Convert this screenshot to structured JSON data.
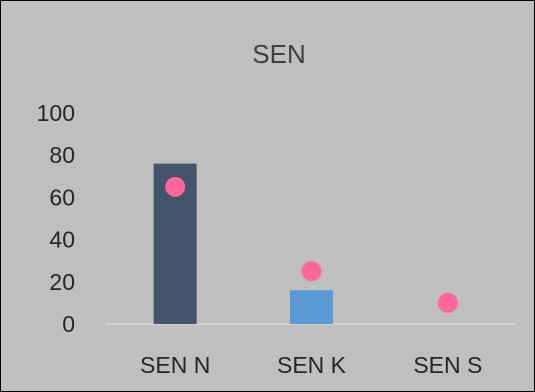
{
  "chart_data": {
    "type": "bar",
    "title": "SEN",
    "xlabel": "",
    "ylabel": "",
    "categories": [
      "SEN N",
      "SEN K",
      "SEN S"
    ],
    "ylim": [
      0,
      100
    ],
    "yticks": [
      "0",
      "20",
      "40",
      "60",
      "80",
      "100"
    ],
    "grid": false,
    "legend": "none",
    "series": [
      {
        "type": "bar",
        "values": [
          76,
          16,
          0
        ],
        "colors": [
          "#44546a",
          "#5b9bd5",
          "#5b9bd5"
        ]
      },
      {
        "type": "scatter",
        "values": [
          65,
          25,
          10
        ],
        "color": "#ff6699"
      }
    ],
    "background": "#bfbfbf",
    "axis_line_color": "#d9d9d9"
  }
}
